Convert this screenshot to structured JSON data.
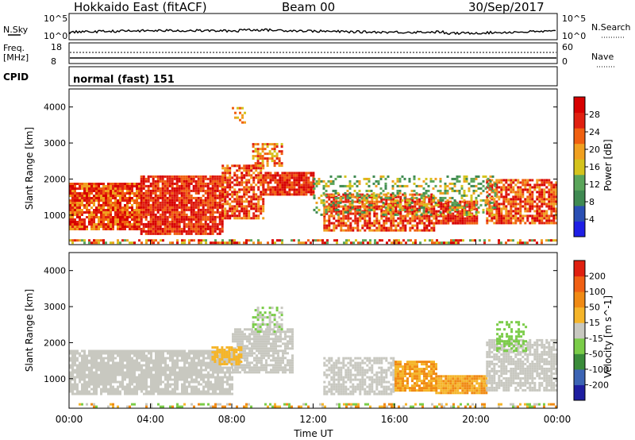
{
  "header": {
    "radar": "Hokkaido East (fitACF)",
    "beam": "Beam 00",
    "date": "30/Sep/2017"
  },
  "nsky_panel": {
    "left_label": "N.Sky",
    "right_label": "N.Search",
    "left_ticks": [
      "10^5",
      "10^0"
    ],
    "right_ticks": [
      "10^5",
      "10^0"
    ]
  },
  "freq_panel": {
    "left_label": "Freq.",
    "left_unit": "[MHz]",
    "right_label": "Nave",
    "left_ticks": [
      "18",
      "8"
    ],
    "right_ticks": [
      "60",
      "0"
    ]
  },
  "cpid_panel": {
    "label": "CPID",
    "text": "normal (fast) 151"
  },
  "colors": {
    "power_scale": [
      "#1f1fe6",
      "#2a4fb4",
      "#3f8a52",
      "#5aa55a",
      "#d4c31c",
      "#f0a020",
      "#f06010",
      "#e02010",
      "#d70000"
    ],
    "velocity_scale": [
      "#1e1ea0",
      "#3c64b4",
      "#3a8c3a",
      "#7acc48",
      "#c8c8c0",
      "#f5b52a",
      "#f08a14",
      "#f06014",
      "#e02010"
    ]
  },
  "chart_data": [
    {
      "type": "heatmap",
      "title": "",
      "xlabel": "Time UT",
      "ylabel": "Slant Range [km]",
      "x_tick_labels": [
        "00:00",
        "04:00",
        "08:00",
        "12:00",
        "16:00",
        "20:00",
        "00:00"
      ],
      "y_tick_labels": [
        "1000",
        "2000",
        "3000",
        "4000"
      ],
      "xlim_hours": [
        0,
        24
      ],
      "ylim_km": [
        180,
        4500
      ],
      "colorbar": {
        "label": "Power [dB]",
        "tick_labels": [
          "4",
          "8",
          "12",
          "16",
          "20",
          "24",
          "28"
        ],
        "range": [
          0,
          32
        ]
      }
    },
    {
      "type": "heatmap",
      "title": "",
      "xlabel": "Time UT",
      "ylabel": "Slant Range [km]",
      "x_tick_labels": [
        "00:00",
        "04:00",
        "08:00",
        "12:00",
        "16:00",
        "20:00",
        "00:00"
      ],
      "y_tick_labels": [
        "1000",
        "2000",
        "3000",
        "4000"
      ],
      "xlim_hours": [
        0,
        24
      ],
      "ylim_km": [
        180,
        4500
      ],
      "colorbar": {
        "label": "Velocity [m s^-1]",
        "tick_labels": [
          "200",
          "100",
          "50",
          "15",
          "-15",
          "-50",
          "-100",
          "-200"
        ]
      }
    }
  ]
}
